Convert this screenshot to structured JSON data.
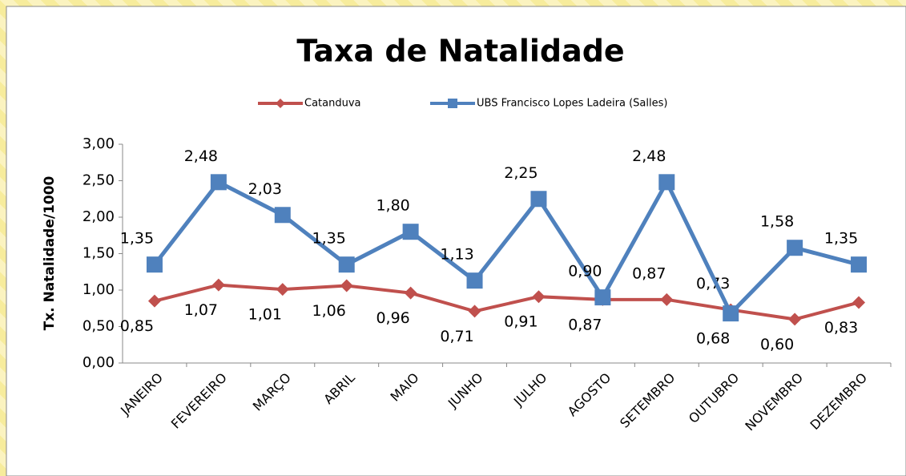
{
  "chart_data": {
    "type": "line",
    "title": "Taxa de Natalidade",
    "y_label": "Tx. Natalidade/1000",
    "categories": [
      "JANEIRO",
      "FEVEREIRO",
      "MARÇO",
      "ABRIL",
      "MAIO",
      "JUNHO",
      "JULHO",
      "AGOSTO",
      "SETEMBRO",
      "OUTUBRO",
      "NOVEMBRO",
      "DEZEMBRO"
    ],
    "series": [
      {
        "name": "Catanduva",
        "color": "#c0504d",
        "marker": "diamond",
        "values": [
          0.85,
          1.07,
          1.01,
          1.06,
          0.96,
          0.71,
          0.91,
          0.87,
          0.87,
          0.73,
          0.6,
          0.83
        ],
        "value_labels": [
          "0,85",
          "1,07",
          "1,01",
          "1,06",
          "0,96",
          "0,71",
          "0,91",
          "0,87",
          "0,87",
          "0,73",
          "0,60",
          "0,83"
        ]
      },
      {
        "name": "UBS Francisco Lopes Ladeira (Salles)",
        "color": "#4f81bd",
        "marker": "square",
        "values": [
          1.35,
          2.48,
          2.03,
          1.35,
          1.8,
          1.13,
          2.25,
          0.9,
          2.48,
          0.68,
          1.58,
          1.35
        ],
        "value_labels": [
          "1,35",
          "2,48",
          "2,03",
          "1,35",
          "1,80",
          "1,13",
          "2,25",
          "0,90",
          "2,48",
          "0,68",
          "1,58",
          "1,35"
        ]
      }
    ],
    "ylim": [
      0,
      3
    ],
    "yticks": [
      {
        "value": 0,
        "label": "0,00"
      },
      {
        "value": 0.5,
        "label": "0,50"
      },
      {
        "value": 1,
        "label": "1,00"
      },
      {
        "value": 1.5,
        "label": "1,50"
      },
      {
        "value": 2,
        "label": "2,00"
      },
      {
        "value": 2.5,
        "label": "2,50"
      },
      {
        "value": 3,
        "label": "3,00"
      }
    ],
    "legend": "top"
  }
}
